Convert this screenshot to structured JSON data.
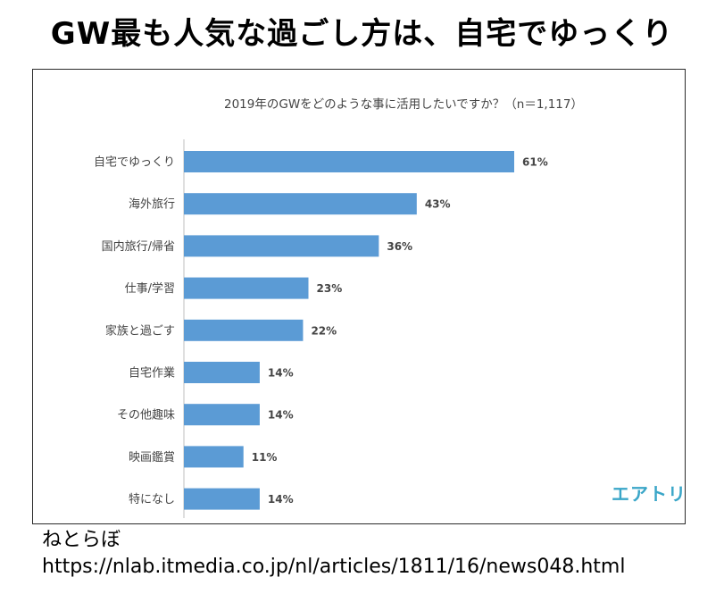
{
  "headline": "GW最も人気な過ごし方は、自宅でゆっくり",
  "logo_text": "エアトリ",
  "source": {
    "name": "ねとらぼ",
    "url": "https://nlab.itmedia.co.jp/nl/articles/1811/16/news048.html"
  },
  "colors": {
    "bar": "#5b9bd5",
    "axis": "#bfbfbf",
    "logo": "#3aa6c8"
  },
  "chart_data": {
    "type": "bar",
    "orientation": "horizontal",
    "title": "2019年のGWをどのような事に活用したいですか？（n＝1,117）",
    "categories": [
      "自宅でゆっくり",
      "海外旅行",
      "国内旅行/帰省",
      "仕事/学習",
      "家族と過ごす",
      "自宅作業",
      "その他趣味",
      "映画鑑賞",
      "特になし"
    ],
    "values": [
      61,
      43,
      36,
      23,
      22,
      14,
      14,
      11,
      14
    ],
    "value_labels": [
      "61%",
      "43%",
      "36%",
      "23%",
      "22%",
      "14%",
      "14%",
      "11%",
      "14%"
    ],
    "unit": "%",
    "xlim": [
      0,
      100
    ],
    "grid": false,
    "legend": "none"
  }
}
